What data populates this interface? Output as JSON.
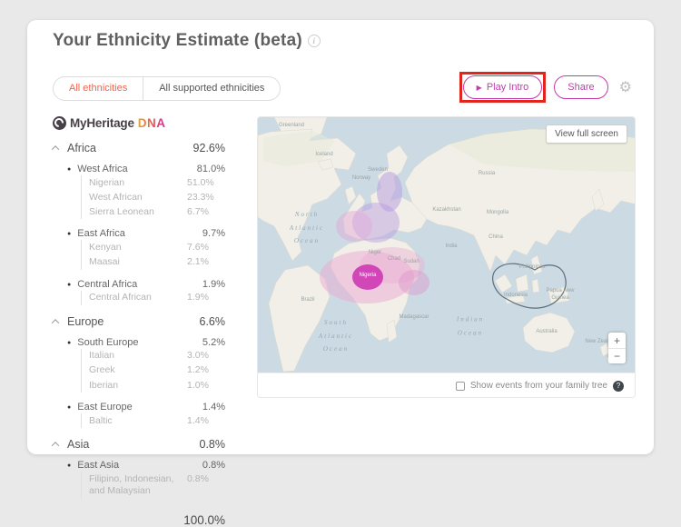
{
  "page": {
    "title": "Your Ethnicity Estimate (beta)",
    "info_icon": "i"
  },
  "tabs": [
    {
      "label": "All ethnicities",
      "active": true
    },
    {
      "label": "All supported ethnicities",
      "active": false
    }
  ],
  "actions": {
    "play_intro": "Play Intro",
    "play_glyph": "▶",
    "share": "Share",
    "gear_icon": "⚙"
  },
  "logo": {
    "brand": "MyHeritage",
    "product": "DNA"
  },
  "ethnicity": {
    "rows": [
      {
        "level": "category",
        "name": "Africa",
        "value": "92.6%"
      },
      {
        "level": "group",
        "name": "West Africa",
        "value": "81.0%"
      },
      {
        "level": "leaf",
        "name": "Nigerian",
        "value": "51.0%"
      },
      {
        "level": "leaf",
        "name": "West African",
        "value": "23.3%"
      },
      {
        "level": "leaf",
        "name": "Sierra Leonean",
        "value": "6.7%"
      },
      {
        "level": "group",
        "name": "East Africa",
        "value": "9.7%"
      },
      {
        "level": "leaf",
        "name": "Kenyan",
        "value": "7.6%"
      },
      {
        "level": "leaf",
        "name": "Maasai",
        "value": "2.1%"
      },
      {
        "level": "group",
        "name": "Central Africa",
        "value": "1.9%"
      },
      {
        "level": "leaf",
        "name": "Central African",
        "value": "1.9%"
      },
      {
        "level": "category",
        "name": "Europe",
        "value": "6.6%"
      },
      {
        "level": "group",
        "name": "South Europe",
        "value": "5.2%"
      },
      {
        "level": "leaf",
        "name": "Italian",
        "value": "3.0%"
      },
      {
        "level": "leaf",
        "name": "Greek",
        "value": "1.2%"
      },
      {
        "level": "leaf",
        "name": "Iberian",
        "value": "1.0%"
      },
      {
        "level": "group",
        "name": "East Europe",
        "value": "1.4%"
      },
      {
        "level": "leaf",
        "name": "Baltic",
        "value": "1.4%"
      },
      {
        "level": "category",
        "name": "Asia",
        "value": "0.8%"
      },
      {
        "level": "group",
        "name": "East Asia",
        "value": "0.8%"
      },
      {
        "level": "leaf",
        "name": "Filipino, Indonesian, and Malaysian",
        "value": "0.8%"
      }
    ],
    "total": "100.0%"
  },
  "map": {
    "view_full_screen": "View full screen",
    "footer": "Show events from your family tree",
    "help_icon": "?",
    "zoom_in": "+",
    "zoom_out": "−",
    "oceans": {
      "north_atlantic": "North\nAtlantic\nOcean",
      "south_atlantic": "South\nAtlantic\nOcean",
      "indian": "Indian\nOcean"
    },
    "labels": [
      "Greenland",
      "Iceland",
      "Norway",
      "Sweden",
      "Russia",
      "Kazakhstan",
      "Mongolia",
      "China",
      "India",
      "Brazil",
      "Australia",
      "Philippines",
      "Indonesia",
      "Papua New Guinea",
      "New Zealand",
      "Madagascar",
      "Nigeria",
      "Chad",
      "Niger",
      "Sudan"
    ]
  },
  "colors": {
    "accent_magenta": "#c43bb0",
    "tab_active_orange": "#f0654e",
    "highlight_red": "#e2251b",
    "region_pink": "#eba9d4",
    "region_core_magenta": "#cc2fb2",
    "region_purple": "#b89ae0",
    "ocean": "#cbdae3",
    "land": "#f1efe7"
  }
}
